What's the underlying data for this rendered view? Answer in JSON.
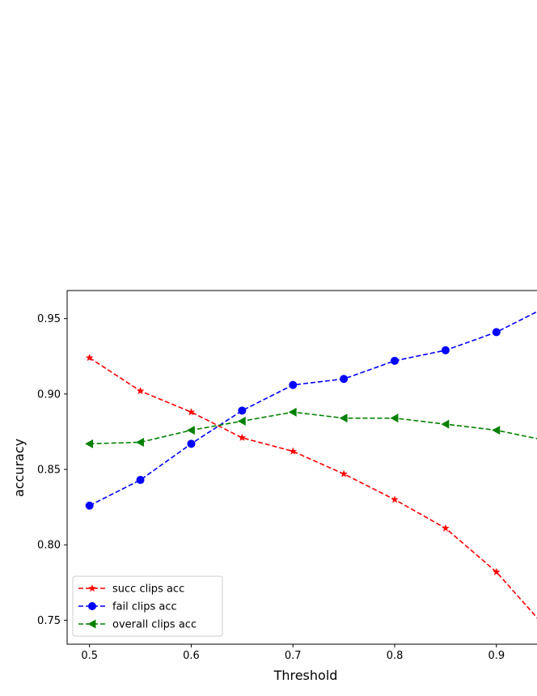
{
  "chart_data": {
    "type": "line",
    "title": "",
    "xlabel": "Threshold",
    "ylabel": "accuracy",
    "xlim": [
      0.478,
      0.955
    ],
    "ylim": [
      0.7341,
      0.9686
    ],
    "xticks": [
      0.5,
      0.6,
      0.7,
      0.8,
      0.9
    ],
    "xtick_labels": [
      "0.5",
      "0.6",
      "0.7",
      "0.8",
      "0.9"
    ],
    "yticks": [
      0.75,
      0.8,
      0.85,
      0.9,
      0.95
    ],
    "ytick_labels": [
      "0.75",
      "0.80",
      "0.85",
      "0.90",
      "0.95"
    ],
    "grid": false,
    "legend_position": "lower-left",
    "x": [
      0.5,
      0.55,
      0.6,
      0.65,
      0.7,
      0.75,
      0.8,
      0.85,
      0.9,
      0.95
    ],
    "series": [
      {
        "name": "succ clips acc",
        "color": "#ff0000",
        "marker": "star",
        "line_style": "dashed",
        "values": [
          0.924,
          0.902,
          0.888,
          0.871,
          0.862,
          0.847,
          0.83,
          0.811,
          0.782,
          0.744
        ]
      },
      {
        "name": "fail clips acc",
        "color": "#0000ff",
        "marker": "circle",
        "line_style": "dashed",
        "values": [
          0.826,
          0.843,
          0.867,
          0.889,
          0.906,
          0.91,
          0.922,
          0.929,
          0.941,
          0.958
        ]
      },
      {
        "name": "overall clips acc",
        "color": "#008000",
        "marker": "triangle-left",
        "line_style": "dashed",
        "values": [
          0.867,
          0.868,
          0.876,
          0.882,
          0.888,
          0.884,
          0.884,
          0.88,
          0.876,
          0.869
        ]
      }
    ]
  }
}
